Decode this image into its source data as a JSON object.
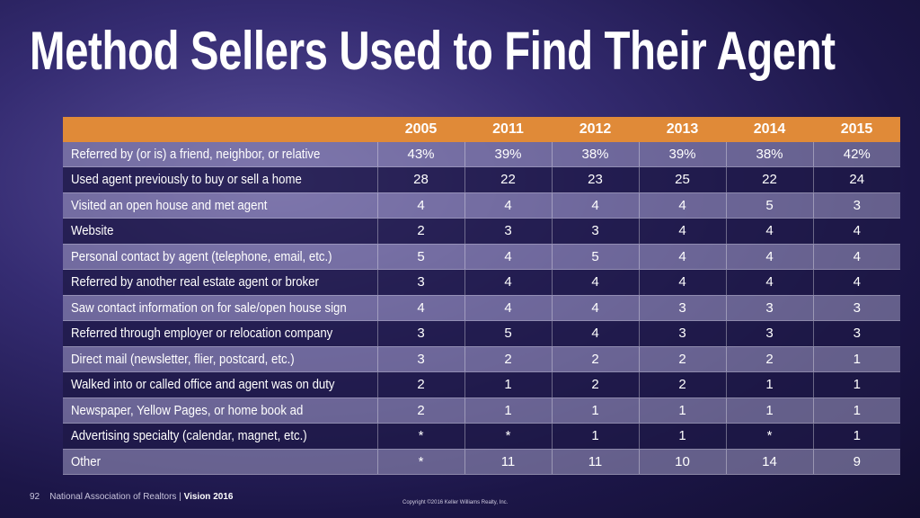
{
  "title": "Method Sellers Used to Find Their Agent",
  "table": {
    "headers": [
      "",
      "2005",
      "2011",
      "2012",
      "2013",
      "2014",
      "2015"
    ],
    "rows": [
      {
        "label": "Referred by (or is) a friend, neighbor, or relative",
        "values": [
          "43%",
          "39%",
          "38%",
          "39%",
          "38%",
          "42%"
        ]
      },
      {
        "label": "Used agent previously to buy or sell a home",
        "values": [
          "28",
          "22",
          "23",
          "25",
          "22",
          "24"
        ]
      },
      {
        "label": "Visited an open house and met agent",
        "values": [
          "4",
          "4",
          "4",
          "4",
          "5",
          "3"
        ]
      },
      {
        "label": "Website",
        "values": [
          "2",
          "3",
          "3",
          "4",
          "4",
          "4"
        ]
      },
      {
        "label": "Personal contact by agent (telephone, email, etc.)",
        "values": [
          "5",
          "4",
          "5",
          "4",
          "4",
          "4"
        ]
      },
      {
        "label": "Referred by another real estate agent or broker",
        "values": [
          "3",
          "4",
          "4",
          "4",
          "4",
          "4"
        ]
      },
      {
        "label": "Saw contact information on for sale/open house sign",
        "values": [
          "4",
          "4",
          "4",
          "3",
          "3",
          "3"
        ]
      },
      {
        "label": "Referred through employer or relocation company",
        "values": [
          "3",
          "5",
          "4",
          "3",
          "3",
          "3"
        ]
      },
      {
        "label": "Direct mail (newsletter, flier, postcard, etc.)",
        "values": [
          "3",
          "2",
          "2",
          "2",
          "2",
          "1"
        ]
      },
      {
        "label": "Walked into or called office and agent was on duty",
        "values": [
          "2",
          "1",
          "2",
          "2",
          "1",
          "1"
        ]
      },
      {
        "label": "Newspaper, Yellow Pages, or home book ad",
        "values": [
          "2",
          "1",
          "1",
          "1",
          "1",
          "1"
        ]
      },
      {
        "label": "Advertising specialty (calendar, magnet, etc.)",
        "values": [
          "*",
          "*",
          "1",
          "1",
          "*",
          "1"
        ]
      },
      {
        "label": "Other",
        "values": [
          "*",
          "11",
          "11",
          "10",
          "14",
          "9"
        ]
      }
    ]
  },
  "footer": {
    "page": "92",
    "source": "National Association of Realtors | ",
    "vision": "Vision 2016",
    "copyright": "Copyright ©2016 Keller Williams Realty, Inc."
  },
  "colors": {
    "header": "#e08a38",
    "background": "#2a2260"
  }
}
